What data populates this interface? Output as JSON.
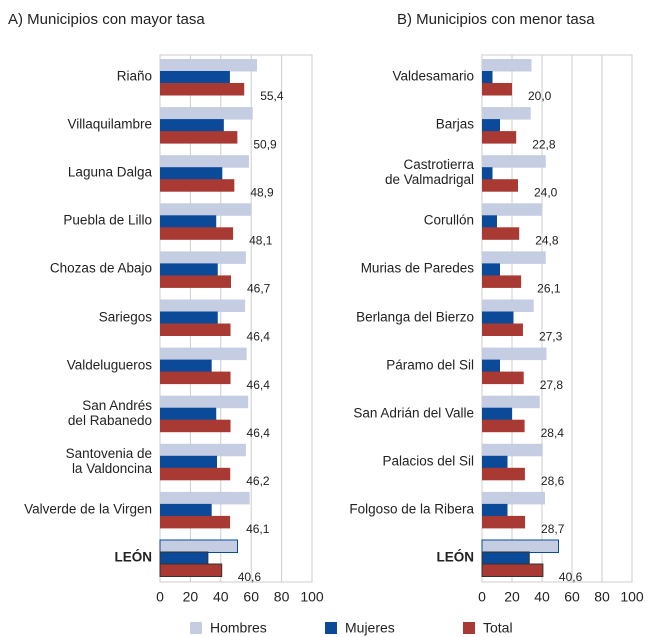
{
  "chart_data": [
    {
      "type": "bar",
      "orientation": "horizontal",
      "title": "A) Municipios con mayor tasa",
      "categories": [
        "Riaño",
        "Villaquilambre",
        "Laguna Dalga",
        "Puebla de Lillo",
        "Chozas de Abajo",
        "Sariegos",
        "Valdelugueros",
        "San Andrés\ndel Rabanedo",
        "Santovenia de\nla Valdoncina",
        "Valverde de la Virgen",
        "LEÓN"
      ],
      "series": [
        {
          "name": "Hombres",
          "color": "#c5cde3",
          "values": [
            63.8,
            61,
            58.5,
            60,
            56.5,
            56,
            57,
            58,
            56.5,
            59,
            51
          ]
        },
        {
          "name": "Mujeres",
          "color": "#0b4a98",
          "values": [
            46,
            42,
            41,
            37,
            38,
            38,
            34,
            37,
            37.5,
            34,
            31.5
          ]
        },
        {
          "name": "Total",
          "color": "#a83a33",
          "values": [
            55.4,
            50.9,
            48.9,
            48.1,
            46.7,
            46.4,
            46.4,
            46.4,
            46.2,
            46.1,
            40.6
          ],
          "value_labels": [
            "55,4",
            "50,9",
            "48,9",
            "48,1",
            "46,7",
            "46,4",
            "46,4",
            "46,4",
            "46,2",
            "46,1",
            "40,6"
          ]
        }
      ],
      "xlim": [
        0,
        100
      ],
      "xticks": [
        0,
        20,
        40,
        60,
        80,
        100
      ],
      "grid": true
    },
    {
      "type": "bar",
      "orientation": "horizontal",
      "title": "B) Municipios con menor tasa",
      "categories": [
        "Valdesamario",
        "Barjas",
        "Castrotierra\nde Valmadrigal",
        "Corullón",
        "Murias de Paredes",
        "Berlanga del Bierzo",
        "Páramo del Sil",
        "San Adrián del Valle",
        "Palacios del Sil",
        "Folgoso de la Ribera",
        "LEÓN"
      ],
      "series": [
        {
          "name": "Hombres",
          "color": "#c5cde3",
          "values": [
            33,
            32.5,
            42.5,
            40,
            42.5,
            34.5,
            43,
            38.5,
            40.5,
            42,
            51
          ]
        },
        {
          "name": "Mujeres",
          "color": "#0b4a98",
          "values": [
            7,
            12,
            7,
            10,
            12,
            21,
            12,
            20,
            17,
            17,
            31.5
          ]
        },
        {
          "name": "Total",
          "color": "#a83a33",
          "values": [
            20.0,
            22.8,
            24.0,
            24.8,
            26.1,
            27.3,
            27.8,
            28.4,
            28.6,
            28.7,
            40.6
          ],
          "value_labels": [
            "20,0",
            "22,8",
            "24,0",
            "24,8",
            "26,1",
            "27,3",
            "27,8",
            "28,4",
            "28,6",
            "28,7",
            "40,6"
          ]
        }
      ],
      "xlim": [
        0,
        100
      ],
      "xticks": [
        0,
        20,
        40,
        60,
        80,
        100
      ],
      "grid": true
    }
  ]
}
